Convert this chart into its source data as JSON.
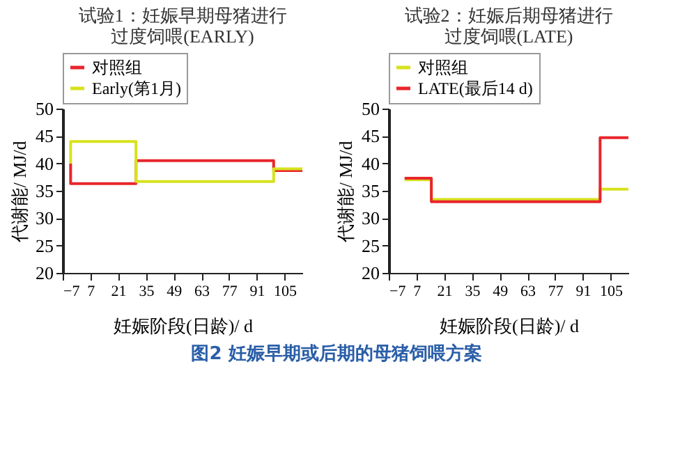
{
  "chart_data": [
    {
      "type": "step",
      "title": "试验1：妊娠早期母猪进行过度饲喂(EARLY)",
      "xlabel": "妊娠阶段(日龄)/ d",
      "ylabel": "代谢能/ MJ/d",
      "xlim": [
        -7,
        114
      ],
      "xticks": [
        -7,
        7,
        21,
        35,
        49,
        63,
        77,
        91,
        105
      ],
      "ylim": [
        20,
        50
      ],
      "yticks": [
        20,
        25,
        30,
        35,
        40,
        45,
        50
      ],
      "legend": "top",
      "grid": false,
      "series": [
        {
          "name": "对照组",
          "color": "#e8262c",
          "x": [
            -3,
            -3,
            30,
            99.5,
            114
          ],
          "values": [
            40,
            36.3,
            40.5,
            38.7,
            38.7
          ]
        },
        {
          "name": "Early(第1月)",
          "color": "#d7e21c",
          "x": [
            -3,
            -3,
            30,
            99.5,
            114
          ],
          "values": [
            40,
            44,
            36.7,
            39,
            39
          ]
        }
      ],
      "annotations": [
        "图2 妊娠早期或后期的母猪饲喂方案"
      ]
    },
    {
      "type": "step",
      "title": "试验2：妊娠后期母猪进行过度饲喂(LATE)",
      "xlabel": "妊娠阶段(日龄)/ d",
      "ylabel": "代谢能/ MJ/d",
      "xlim": [
        -7,
        114
      ],
      "xticks": [
        -7,
        7,
        21,
        35,
        49,
        63,
        77,
        91,
        105
      ],
      "ylim": [
        20,
        50
      ],
      "yticks": [
        20,
        25,
        30,
        35,
        40,
        45,
        50
      ],
      "legend": "top",
      "grid": false,
      "series": [
        {
          "name": "对照组",
          "color": "#d7e21c",
          "x": [
            1,
            14.5,
            99.7,
            114
          ],
          "values": [
            37,
            33.4,
            35.3,
            35.3
          ]
        },
        {
          "name": "LATE(最后14 d)",
          "color": "#e8262c",
          "x": [
            1,
            14.5,
            99.7,
            114
          ],
          "values": [
            37.3,
            33,
            44.7,
            44.7
          ]
        }
      ]
    }
  ]
}
